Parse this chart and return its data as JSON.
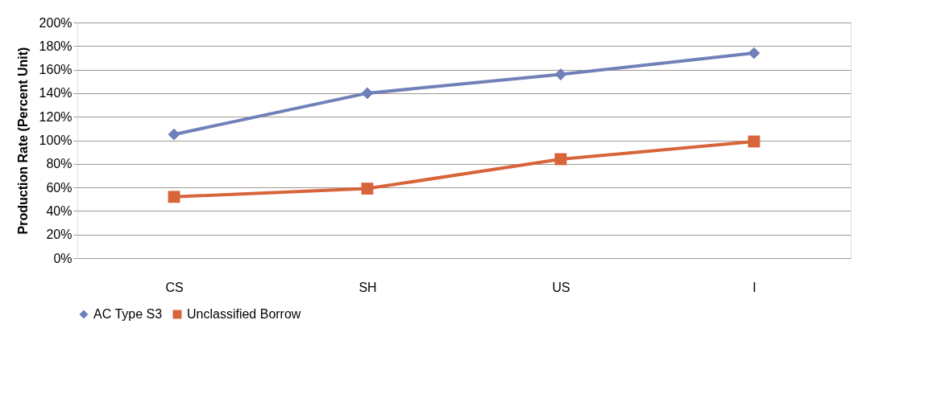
{
  "chart_data": {
    "type": "line",
    "ylabel": "Production Rate (Percent Unit)",
    "categories": [
      "CS",
      "SH",
      "US",
      "I"
    ],
    "series": [
      {
        "name": "AC Type S3",
        "color": "#7080b8",
        "marker": "diamond",
        "values": [
          105,
          140,
          156,
          174
        ]
      },
      {
        "name": "Unclassified Borrow",
        "color": "#d8643a",
        "marker": "square",
        "values": [
          52,
          59,
          84,
          99
        ]
      }
    ],
    "ylim": [
      0,
      200
    ],
    "yticks": [
      {
        "value": 0,
        "label": "0%"
      },
      {
        "value": 20,
        "label": "20%"
      },
      {
        "value": 40,
        "label": "40%"
      },
      {
        "value": 60,
        "label": "60%"
      },
      {
        "value": 80,
        "label": "80%"
      },
      {
        "value": 100,
        "label": "100%"
      },
      {
        "value": 120,
        "label": "120%"
      },
      {
        "value": 140,
        "label": "140%"
      },
      {
        "value": 160,
        "label": "160%"
      },
      {
        "value": 180,
        "label": "180%"
      },
      {
        "value": 200,
        "label": "200%"
      }
    ],
    "grid": "y",
    "legend": "bottom",
    "line_style": "solid"
  }
}
